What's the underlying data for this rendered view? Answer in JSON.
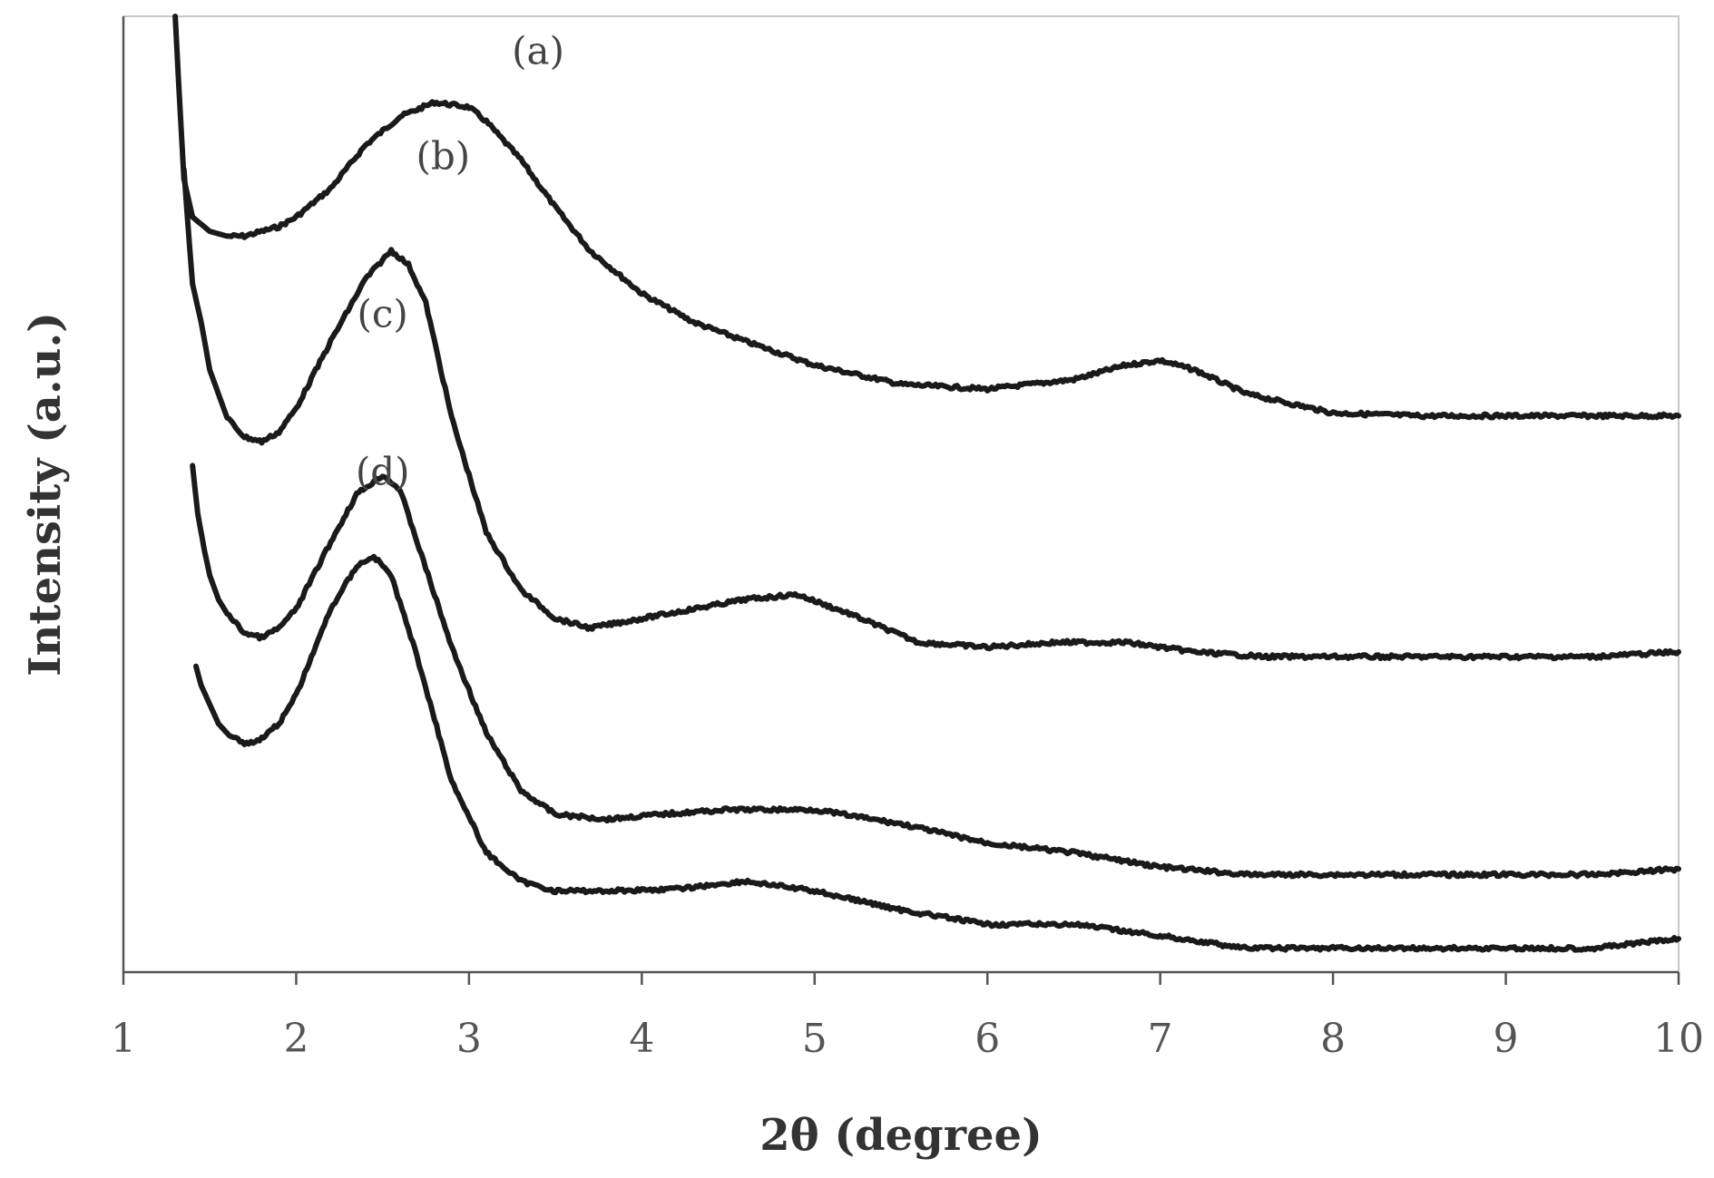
{
  "chart_data": {
    "type": "line",
    "title": "",
    "xlabel": "2θ (degree)",
    "ylabel": "Intensity (a.u.)",
    "xlim": [
      1,
      10
    ],
    "ylim": [
      0,
      100
    ],
    "xticks": [
      "1",
      "2",
      "3",
      "4",
      "5",
      "6",
      "7",
      "8",
      "9",
      "10"
    ],
    "yticks_shown": false,
    "grid": false,
    "legend": "inline labels",
    "colors": {
      "line": "#1a1a1a",
      "frame": "#c8c8c8",
      "text": "#555555"
    },
    "series": [
      {
        "name": "(a)",
        "label_at": [
          3.4,
          95
        ],
        "x": [
          1.3,
          1.32,
          1.35,
          1.4,
          1.5,
          1.6,
          1.7,
          1.8,
          1.9,
          2.0,
          2.2,
          2.4,
          2.6,
          2.8,
          3.0,
          3.1,
          3.3,
          3.5,
          3.7,
          4.0,
          4.3,
          4.6,
          5.0,
          5.5,
          6.0,
          6.5,
          6.8,
          7.0,
          7.2,
          7.5,
          8.0,
          8.5,
          9.0,
          9.5,
          10.0
        ],
        "y": [
          100,
          93,
          83,
          79,
          77.5,
          77,
          77,
          77.5,
          78,
          79,
          82,
          86.5,
          89.5,
          91,
          90.5,
          89,
          85,
          80,
          75.5,
          71,
          68,
          66,
          63.5,
          61.5,
          61,
          62,
          63.5,
          64,
          63,
          60.5,
          58.5,
          58.2,
          58.2,
          58.2,
          58.2
        ]
      },
      {
        "name": "(b)",
        "label_at": [
          2.85,
          84
        ],
        "x": [
          1.35,
          1.37,
          1.4,
          1.45,
          1.5,
          1.6,
          1.7,
          1.8,
          1.9,
          2.0,
          2.2,
          2.4,
          2.55,
          2.65,
          2.75,
          2.9,
          3.1,
          3.3,
          3.5,
          3.7,
          4.0,
          4.3,
          4.6,
          4.9,
          5.2,
          5.6,
          6.0,
          6.4,
          6.8,
          7.2,
          7.6,
          8.0,
          8.5,
          9.0,
          9.5,
          10.0
        ],
        "y": [
          84,
          79,
          72,
          68,
          63,
          58,
          56,
          55.5,
          56.5,
          59,
          66,
          72.5,
          75.5,
          74,
          70,
          58,
          46,
          40,
          37,
          36,
          37,
          38,
          39,
          39.5,
          37.5,
          34.5,
          34,
          34.5,
          34.5,
          33.5,
          33,
          33,
          33,
          33,
          33,
          33.5
        ]
      },
      {
        "name": "(c)",
        "label_at": [
          2.5,
          67.5
        ],
        "x": [
          1.4,
          1.43,
          1.47,
          1.5,
          1.55,
          1.6,
          1.7,
          1.8,
          1.9,
          2.0,
          2.2,
          2.35,
          2.5,
          2.6,
          2.7,
          2.9,
          3.1,
          3.3,
          3.5,
          3.8,
          4.1,
          4.5,
          5.0,
          5.5,
          6.0,
          6.5,
          7.0,
          7.5,
          8.0,
          8.5,
          9.0,
          9.5,
          10.0
        ],
        "y": [
          53,
          48,
          44,
          41.5,
          39,
          37.5,
          35.5,
          35,
          36,
          38,
          45,
          50,
          52,
          50.5,
          45,
          34,
          25,
          19,
          16.5,
          16,
          16.5,
          17,
          17,
          15.5,
          13.5,
          12.5,
          11,
          10.2,
          10.2,
          10.2,
          10.2,
          10.2,
          10.8
        ]
      },
      {
        "name": "(d)",
        "label_at": [
          2.5,
          51
        ],
        "x": [
          1.42,
          1.45,
          1.5,
          1.55,
          1.6,
          1.65,
          1.7,
          1.75,
          1.8,
          1.9,
          2.0,
          2.2,
          2.35,
          2.45,
          2.55,
          2.7,
          2.9,
          3.1,
          3.3,
          3.5,
          3.8,
          4.2,
          4.6,
          5.0,
          5.5,
          6.0,
          6.5,
          7.0,
          7.5,
          8.0,
          8.5,
          9.0,
          9.5,
          10.0
        ],
        "y": [
          32,
          30,
          28,
          26,
          25,
          24.5,
          24,
          24,
          24.5,
          26,
          29,
          38,
          42.5,
          43.5,
          41.5,
          33,
          20,
          12.5,
          9.5,
          8.5,
          8.5,
          8.7,
          9.5,
          8.5,
          6.5,
          5,
          5,
          3.8,
          2.5,
          2.5,
          2.5,
          2.5,
          2.5,
          3.5
        ]
      }
    ]
  }
}
